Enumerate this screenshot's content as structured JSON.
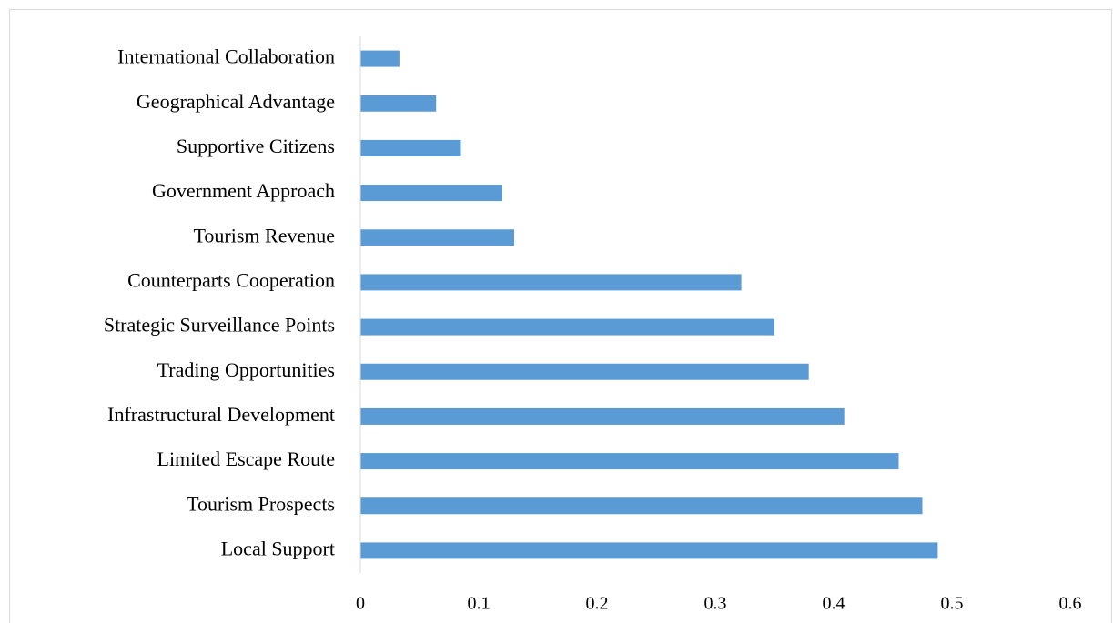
{
  "chart_data": {
    "type": "hbar",
    "categories": [
      "International Collaboration",
      "Geographical Advantage",
      "Supportive Citizens",
      "Government Approach",
      "Tourism Revenue",
      "Counterparts Cooperation",
      "Strategic Surveillance Points",
      "Trading Opportunities",
      "Infrastructural Development",
      "Limited Escape Route",
      "Tourism Prospects",
      "Local Support"
    ],
    "values": [
      0.033,
      0.064,
      0.085,
      0.12,
      0.13,
      0.322,
      0.35,
      0.379,
      0.409,
      0.455,
      0.475,
      0.488
    ],
    "color": "#5b9bd5",
    "xlim": [
      0,
      0.6
    ],
    "xticks": [
      0,
      0.1,
      0.2,
      0.3,
      0.4,
      0.5,
      0.6
    ],
    "grid": false
  }
}
